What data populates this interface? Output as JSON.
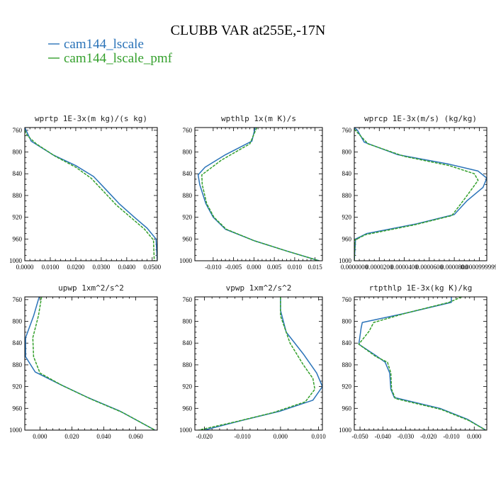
{
  "figure": {
    "title": "CLUBB VAR at255E,-17N",
    "legend": [
      {
        "label": "cam144_lscale",
        "color": "#2a73b8",
        "dash": "solid"
      },
      {
        "label": "cam144_lscale_pmf",
        "color": "#34a02c",
        "dash": "dashed"
      }
    ]
  },
  "chart_data": [
    {
      "type": "line",
      "title": "wprtp  1E-3x(m kg)/(s kg)",
      "xlim": [
        0.0,
        0.052
      ],
      "xticks": [
        0.0,
        0.01,
        0.02,
        0.03,
        0.04,
        0.05
      ],
      "xtick_labels": [
        "0.0000",
        "0.0100",
        "0.0200",
        "0.0300",
        "0.0400",
        "0.0500"
      ],
      "ylim": [
        1000,
        755
      ],
      "yticks": [
        760,
        800,
        840,
        880,
        920,
        960,
        1000
      ],
      "ytick_labels": [
        "760",
        "800",
        "840",
        "880",
        "920",
        "960",
        "1000"
      ],
      "series": [
        {
          "name": "cam144_lscale",
          "color": "#2a73b8",
          "dash": "solid",
          "points": [
            [
              0.0,
              755
            ],
            [
              0.0005,
              760
            ],
            [
              0.0025,
              780
            ],
            [
              0.011,
              805
            ],
            [
              0.02,
              825
            ],
            [
              0.027,
              845
            ],
            [
              0.032,
              870
            ],
            [
              0.037,
              895
            ],
            [
              0.043,
              920
            ],
            [
              0.048,
              940
            ],
            [
              0.0515,
              960
            ],
            [
              0.052,
              1000
            ]
          ]
        },
        {
          "name": "cam144_lscale_pmf",
          "color": "#34a02c",
          "dash": "dashed",
          "points": [
            [
              0.0,
              760
            ],
            [
              0.001,
              770
            ],
            [
              0.0045,
              785
            ],
            [
              0.012,
              808
            ],
            [
              0.02,
              828
            ],
            [
              0.026,
              848
            ],
            [
              0.031,
              873
            ],
            [
              0.036,
              898
            ],
            [
              0.042,
              922
            ],
            [
              0.047,
              942
            ],
            [
              0.0505,
              962
            ],
            [
              0.0508,
              1000
            ]
          ]
        }
      ]
    },
    {
      "type": "line",
      "title": "wpthlp  1x(m K)/s",
      "xlim": [
        -0.0145,
        0.0168
      ],
      "xticks": [
        -0.01,
        -0.005,
        0.0,
        0.005,
        0.01,
        0.015
      ],
      "xtick_labels": [
        "-0.010",
        "-0.005",
        "0.000",
        "0.005",
        "0.010",
        "0.015"
      ],
      "ylim": [
        1000,
        755
      ],
      "yticks": [
        760,
        800,
        840,
        880,
        920,
        960,
        1000
      ],
      "ytick_labels": [
        "760",
        "800",
        "840",
        "880",
        "920",
        "960",
        "1000"
      ],
      "series": [
        {
          "name": "cam144_lscale",
          "color": "#2a73b8",
          "dash": "solid",
          "points": [
            [
              0.0003,
              755
            ],
            [
              -0.0005,
              780
            ],
            [
              -0.007,
              805
            ],
            [
              -0.012,
              828
            ],
            [
              -0.0137,
              842
            ],
            [
              -0.0133,
              860
            ],
            [
              -0.0118,
              895
            ],
            [
              -0.01,
              920
            ],
            [
              -0.007,
              942
            ],
            [
              0.0,
              963
            ],
            [
              0.008,
              982
            ],
            [
              0.016,
              1000
            ]
          ]
        },
        {
          "name": "cam144_lscale_pmf",
          "color": "#34a02c",
          "dash": "dashed",
          "points": [
            [
              0.0007,
              755
            ],
            [
              -0.001,
              785
            ],
            [
              -0.008,
              815
            ],
            [
              -0.0128,
              842
            ],
            [
              -0.0127,
              860
            ],
            [
              -0.0116,
              895
            ],
            [
              -0.0098,
              920
            ],
            [
              -0.0068,
              942
            ],
            [
              0.0,
              963
            ],
            [
              0.008,
              982
            ],
            [
              0.016,
              1000
            ]
          ]
        }
      ]
    },
    {
      "type": "line",
      "title": "wprcp  1E-3x(m/s) (kg/kg)",
      "xlim": [
        0.0,
        0.000106
      ],
      "xticks": [
        0.0,
        2e-05,
        4e-05,
        6e-05,
        8e-05,
        0.0001
      ],
      "xtick_labels": [
        "0.0000000",
        "0.0000200",
        "0.0000400",
        "0.0000600",
        "0.0000800",
        "0.0000999999"
      ],
      "ylim": [
        1000,
        755
      ],
      "yticks": [
        760,
        800,
        840,
        880,
        920,
        960,
        1000
      ],
      "ytick_labels": [
        "760",
        "800",
        "840",
        "880",
        "920",
        "960",
        "1000"
      ],
      "series": [
        {
          "name": "cam144_lscale",
          "color": "#2a73b8",
          "dash": "solid",
          "points": [
            [
              0.0,
              755
            ],
            [
              2.5e-06,
              760
            ],
            [
              8e-06,
              782
            ],
            [
              3.5e-05,
              805
            ],
            [
              7.5e-05,
              822
            ],
            [
              9.9e-05,
              835
            ],
            [
              0.000106,
              848
            ],
            [
              0.000103,
              865
            ],
            [
              9e-05,
              890
            ],
            [
              8e-05,
              915
            ],
            [
              5e-05,
              932
            ],
            [
              1e-05,
              950
            ],
            [
              1e-06,
              960
            ],
            [
              0.0,
              1000
            ]
          ]
        },
        {
          "name": "cam144_lscale_pmf",
          "color": "#34a02c",
          "dash": "dashed",
          "points": [
            [
              0.0,
              758
            ],
            [
              4e-06,
              768
            ],
            [
              1.1e-05,
              785
            ],
            [
              4e-05,
              808
            ],
            [
              7.6e-05,
              825
            ],
            [
              9.6e-05,
              840
            ],
            [
              9.9e-05,
              852
            ],
            [
              9.5e-05,
              865
            ],
            [
              8.7e-05,
              890
            ],
            [
              7.8e-05,
              917
            ],
            [
              4.8e-05,
              934
            ],
            [
              9e-06,
              952
            ],
            [
              5e-07,
              962
            ],
            [
              0.0,
              1000
            ]
          ]
        }
      ]
    },
    {
      "type": "line",
      "title": "upwp  1xm^2/s^2",
      "xlim": [
        -0.0095,
        0.0735
      ],
      "xticks": [
        0.0,
        0.02,
        0.04,
        0.06
      ],
      "xtick_labels": [
        "0.000",
        "0.020",
        "0.040",
        "0.060"
      ],
      "ylim": [
        1000,
        755
      ],
      "yticks": [
        760,
        800,
        840,
        880,
        920,
        960,
        1000
      ],
      "ytick_labels": [
        "760",
        "800",
        "840",
        "880",
        "920",
        "960",
        "1000"
      ],
      "series": [
        {
          "name": "cam144_lscale",
          "color": "#2a73b8",
          "dash": "solid",
          "points": [
            [
              -0.0005,
              755
            ],
            [
              -0.004,
              790
            ],
            [
              -0.009,
              830
            ],
            [
              -0.009,
              865
            ],
            [
              -0.003,
              893
            ],
            [
              0.012,
              915
            ],
            [
              0.03,
              940
            ],
            [
              0.05,
              965
            ],
            [
              0.072,
              1000
            ]
          ]
        },
        {
          "name": "cam144_lscale_pmf",
          "color": "#34a02c",
          "dash": "dashed",
          "points": [
            [
              0.001,
              755
            ],
            [
              -0.001,
              790
            ],
            [
              -0.0045,
              830
            ],
            [
              -0.004,
              865
            ],
            [
              0.0,
              895
            ],
            [
              0.014,
              918
            ],
            [
              0.032,
              943
            ],
            [
              0.052,
              968
            ],
            [
              0.072,
              1000
            ]
          ]
        }
      ]
    },
    {
      "type": "line",
      "title": "vpwp  1xm^2/s^2",
      "xlim": [
        -0.0225,
        0.011
      ],
      "xticks": [
        -0.02,
        -0.01,
        0.0,
        0.01
      ],
      "xtick_labels": [
        "-0.020",
        "-0.010",
        "0.000",
        "0.010"
      ],
      "ylim": [
        1000,
        755
      ],
      "yticks": [
        760,
        800,
        840,
        880,
        920,
        960,
        1000
      ],
      "ytick_labels": [
        "760",
        "800",
        "840",
        "880",
        "920",
        "960",
        "1000"
      ],
      "series": [
        {
          "name": "cam144_lscale",
          "color": "#2a73b8",
          "dash": "solid",
          "points": [
            [
              0.0,
              755
            ],
            [
              0.0,
              780
            ],
            [
              0.0015,
              820
            ],
            [
              0.006,
              860
            ],
            [
              0.0095,
              895
            ],
            [
              0.011,
              920
            ],
            [
              0.0085,
              945
            ],
            [
              0.0,
              965
            ],
            [
              -0.01,
              982
            ],
            [
              -0.02,
              1000
            ]
          ]
        },
        {
          "name": "cam144_lscale_pmf",
          "color": "#34a02c",
          "dash": "dashed",
          "points": [
            [
              0.0,
              755
            ],
            [
              0.0,
              790
            ],
            [
              0.0025,
              840
            ],
            [
              0.006,
              880
            ],
            [
              0.0085,
              905
            ],
            [
              0.009,
              925
            ],
            [
              0.0065,
              948
            ],
            [
              -0.002,
              968
            ],
            [
              -0.012,
              985
            ],
            [
              -0.0215,
              1000
            ]
          ]
        }
      ]
    },
    {
      "type": "line",
      "title": "rtpthlp  1E-3x(kg K)/kg",
      "xlim": [
        -0.0525,
        0.0055
      ],
      "xticks": [
        -0.05,
        -0.04,
        -0.03,
        -0.02,
        -0.01,
        0.0
      ],
      "xtick_labels": [
        "-0.050",
        "-0.040",
        "-0.030",
        "-0.020",
        "-0.010",
        "0.000"
      ],
      "ylim": [
        1000,
        755
      ],
      "yticks": [
        760,
        800,
        840,
        880,
        920,
        960,
        1000
      ],
      "ytick_labels": [
        "760",
        "800",
        "840",
        "880",
        "920",
        "960",
        "1000"
      ],
      "series": [
        {
          "name": "cam144_lscale",
          "color": "#2a73b8",
          "dash": "solid",
          "points": [
            [
              -0.01,
              755
            ],
            [
              -0.01,
              765
            ],
            [
              -0.03,
              785
            ],
            [
              -0.049,
              802
            ],
            [
              -0.0495,
              812
            ],
            [
              -0.0505,
              842
            ],
            [
              -0.043,
              863
            ],
            [
              -0.039,
              875
            ],
            [
              -0.037,
              895
            ],
            [
              -0.0365,
              925
            ],
            [
              -0.035,
              940
            ],
            [
              -0.015,
              960
            ],
            [
              -0.003,
              980
            ],
            [
              0.005,
              1000
            ]
          ]
        },
        {
          "name": "cam144_lscale_pmf",
          "color": "#34a02c",
          "dash": "dashed",
          "points": [
            [
              -0.0055,
              755
            ],
            [
              -0.011,
              765
            ],
            [
              -0.03,
              785
            ],
            [
              -0.044,
              802
            ],
            [
              -0.046,
              818
            ],
            [
              -0.0505,
              842
            ],
            [
              -0.043,
              865
            ],
            [
              -0.038,
              875
            ],
            [
              -0.0365,
              895
            ],
            [
              -0.0362,
              925
            ],
            [
              -0.0345,
              942
            ],
            [
              -0.0145,
              962
            ],
            [
              -0.0025,
              982
            ],
            [
              0.005,
              1000
            ]
          ]
        }
      ]
    }
  ]
}
